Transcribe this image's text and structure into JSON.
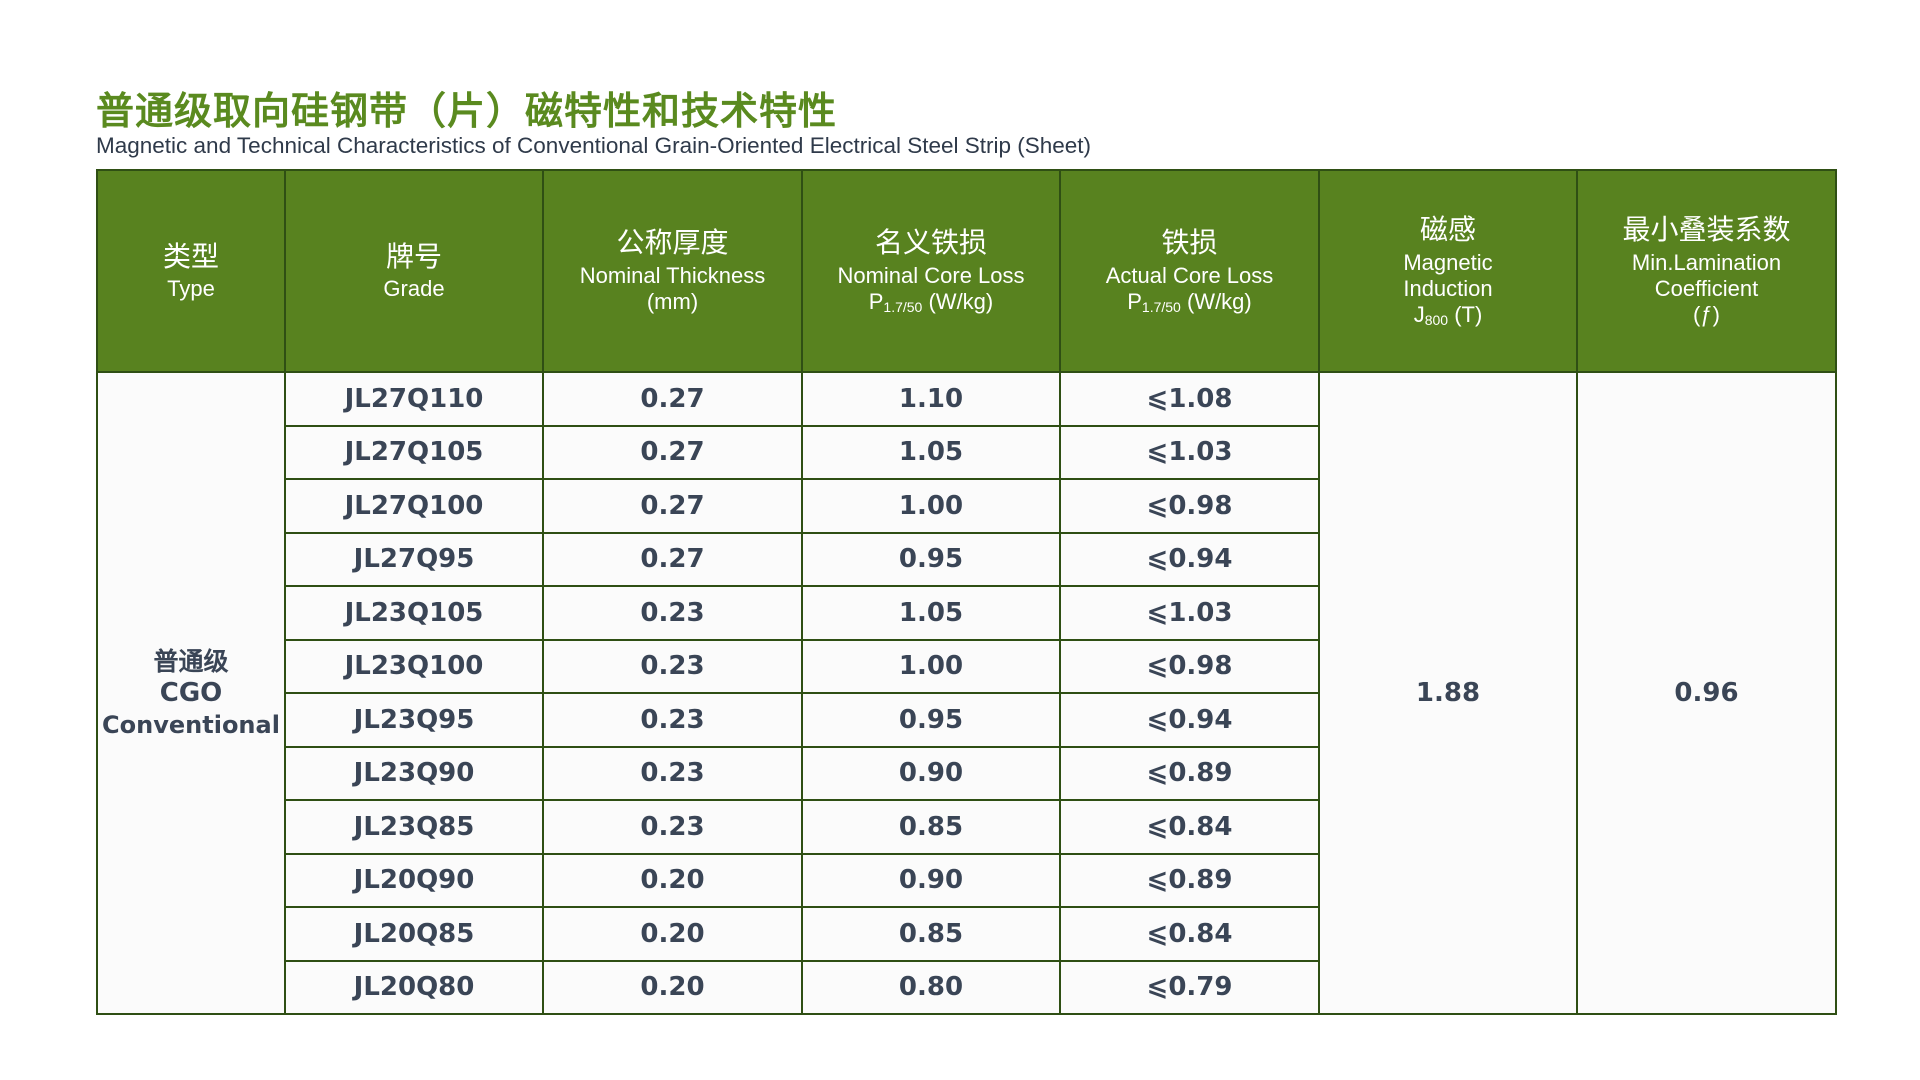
{
  "title_cn": "普通级取向硅钢带（片）磁特性和技术特性",
  "title_en": "Magnetic and Technical Characteristics of Conventional Grain-Oriented Electrical Steel Strip (Sheet)",
  "headers": {
    "type": {
      "cn": "类型",
      "en": "Type"
    },
    "grade": {
      "cn": "牌号",
      "en": "Grade"
    },
    "thickness": {
      "cn": "公称厚度",
      "en": "Nominal Thickness",
      "unit": "(mm)"
    },
    "nominal_loss": {
      "cn": "名义铁损",
      "en": "Nominal Core Loss",
      "symbol": "P",
      "sub": "1.7/50",
      "unit": " (W/kg)"
    },
    "actual_loss": {
      "cn": "铁损",
      "en": "Actual Core Loss",
      "symbol": "P",
      "sub": "1.7/50",
      "unit": " (W/kg)"
    },
    "induction": {
      "cn": "磁感",
      "en_line1": "Magnetic",
      "en_line2": "Induction",
      "symbol": "J",
      "sub": "800",
      "unit": " (T)"
    },
    "lamination": {
      "cn": "最小叠装系数",
      "en_line1": "Min.Lamination",
      "en_line2": "Coefficient",
      "symbol": "(ƒ)"
    }
  },
  "type": {
    "cn": "普通级",
    "code": "CGO",
    "en": "Conventional"
  },
  "induction_value": "1.88",
  "lamination_value": "0.96",
  "rows": [
    {
      "grade": "JL27Q110",
      "thickness": "0.27",
      "nominal": "1.10",
      "actual": "⩽1.08"
    },
    {
      "grade": "JL27Q105",
      "thickness": "0.27",
      "nominal": "1.05",
      "actual": "⩽1.03"
    },
    {
      "grade": "JL27Q100",
      "thickness": "0.27",
      "nominal": "1.00",
      "actual": "⩽0.98"
    },
    {
      "grade": "JL27Q95",
      "thickness": "0.27",
      "nominal": "0.95",
      "actual": "⩽0.94"
    },
    {
      "grade": "JL23Q105",
      "thickness": "0.23",
      "nominal": "1.05",
      "actual": "⩽1.03"
    },
    {
      "grade": "JL23Q100",
      "thickness": "0.23",
      "nominal": "1.00",
      "actual": "⩽0.98"
    },
    {
      "grade": "JL23Q95",
      "thickness": "0.23",
      "nominal": "0.95",
      "actual": "⩽0.94"
    },
    {
      "grade": "JL23Q90",
      "thickness": "0.23",
      "nominal": "0.90",
      "actual": "⩽0.89"
    },
    {
      "grade": "JL23Q85",
      "thickness": "0.23",
      "nominal": "0.85",
      "actual": "⩽0.84"
    },
    {
      "grade": "JL20Q90",
      "thickness": "0.20",
      "nominal": "0.90",
      "actual": "⩽0.89"
    },
    {
      "grade": "JL20Q85",
      "thickness": "0.20",
      "nominal": "0.85",
      "actual": "⩽0.84"
    },
    {
      "grade": "JL20Q80",
      "thickness": "0.20",
      "nominal": "0.80",
      "actual": "⩽0.79"
    }
  ]
}
